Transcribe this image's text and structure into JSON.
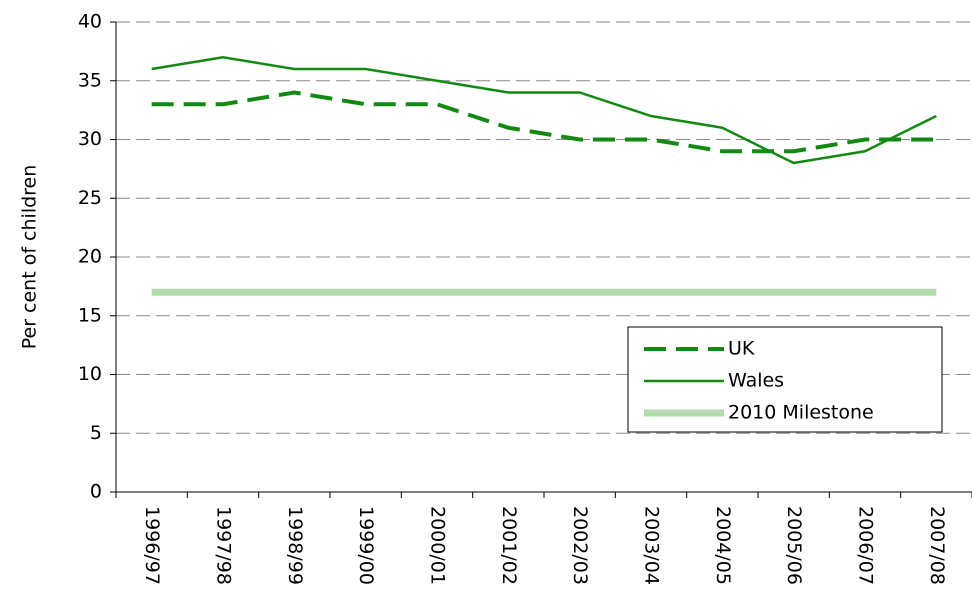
{
  "chart_data": {
    "type": "line",
    "y_label": "Per cent of children",
    "categories": [
      "1996/97",
      "1997/98",
      "1998/99",
      "1999/00",
      "2000/01",
      "2001/02",
      "2002/03",
      "2003/04",
      "2004/05",
      "2005/06",
      "2006/07",
      "2007/08"
    ],
    "series": [
      {
        "name": "UK",
        "color": "#128a12",
        "dash": true,
        "width": 4,
        "values": [
          33,
          33,
          34,
          33,
          33,
          31,
          30,
          30,
          29,
          29,
          30,
          30
        ]
      },
      {
        "name": "Wales",
        "color": "#128a12",
        "dash": false,
        "width": 2.5,
        "values": [
          36,
          37,
          36,
          36,
          35,
          34,
          34,
          32,
          31,
          28,
          29,
          32
        ]
      },
      {
        "name": "2010 Milestone",
        "color": "#b3dcae",
        "dash": false,
        "width": 7,
        "values": [
          17,
          17,
          17,
          17,
          17,
          17,
          17,
          17,
          17,
          17,
          17,
          17
        ]
      }
    ],
    "ylim": [
      0,
      40
    ],
    "yticks": [
      0,
      5,
      10,
      15,
      20,
      25,
      30,
      35,
      40
    ],
    "grid": true,
    "legend": "lower right"
  }
}
